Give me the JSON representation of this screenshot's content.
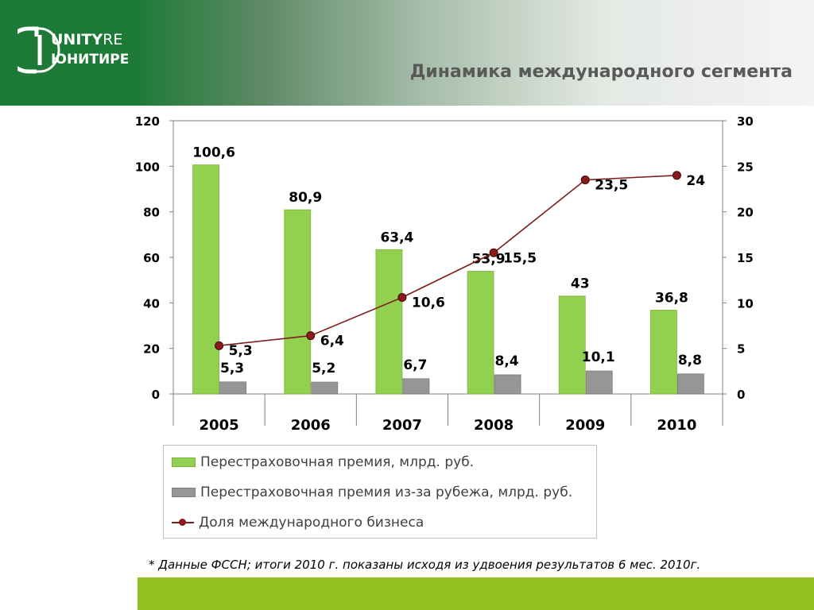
{
  "header": {
    "logo_line1": "UNITY",
    "logo_line1_suffix": "RE",
    "logo_line2": "ЮНИТИ",
    "logo_line2_suffix": "РЕ",
    "title": "Динамика международного сегмента"
  },
  "colors": {
    "header_green": "#1d7a36",
    "bar_green": "#92d050",
    "bar_gray": "#969696",
    "line_red": "#7f1e1e",
    "footer_bar": "#92c01d"
  },
  "chart_data": {
    "type": "bar+line",
    "categories": [
      "2005",
      "2006",
      "2007",
      "2008",
      "2009",
      "2010"
    ],
    "series": [
      {
        "name": "Перестраховочная премия, млрд. руб.",
        "type": "bar",
        "axis": "left",
        "values": [
          100.6,
          80.9,
          63.4,
          53.9,
          43,
          36.8
        ],
        "labels": [
          "100,6",
          "80,9",
          "63,4",
          "53,9",
          "43",
          "36,8"
        ]
      },
      {
        "name": "Перестраховочная премия из-за рубежа, млрд. руб.",
        "type": "bar",
        "axis": "left",
        "values": [
          5.3,
          5.2,
          6.7,
          8.4,
          10.1,
          8.8
        ],
        "labels": [
          "5,3",
          "5,2",
          "6,7",
          "8,4",
          "10,1",
          "8,8"
        ]
      },
      {
        "name": "Доля международного бизнеса",
        "type": "line",
        "axis": "right",
        "values": [
          5.3,
          6.4,
          10.6,
          15.5,
          23.5,
          24
        ],
        "labels": [
          "5,3",
          "6,4",
          "10,6",
          "15,5",
          "23,5",
          "24"
        ]
      }
    ],
    "y_left": {
      "min": 0,
      "max": 120,
      "ticks": [
        "0",
        "20",
        "40",
        "60",
        "80",
        "100",
        "120"
      ]
    },
    "y_right": {
      "min": 0,
      "max": 30,
      "ticks": [
        "0",
        "5",
        "10",
        "15",
        "20",
        "25",
        "30"
      ]
    },
    "grid": false,
    "legend_position": "bottom"
  },
  "footnote": "* Данные ФССН; итоги 2010 г. показаны исходя из удвоения результатов 6 мес. 2010г."
}
